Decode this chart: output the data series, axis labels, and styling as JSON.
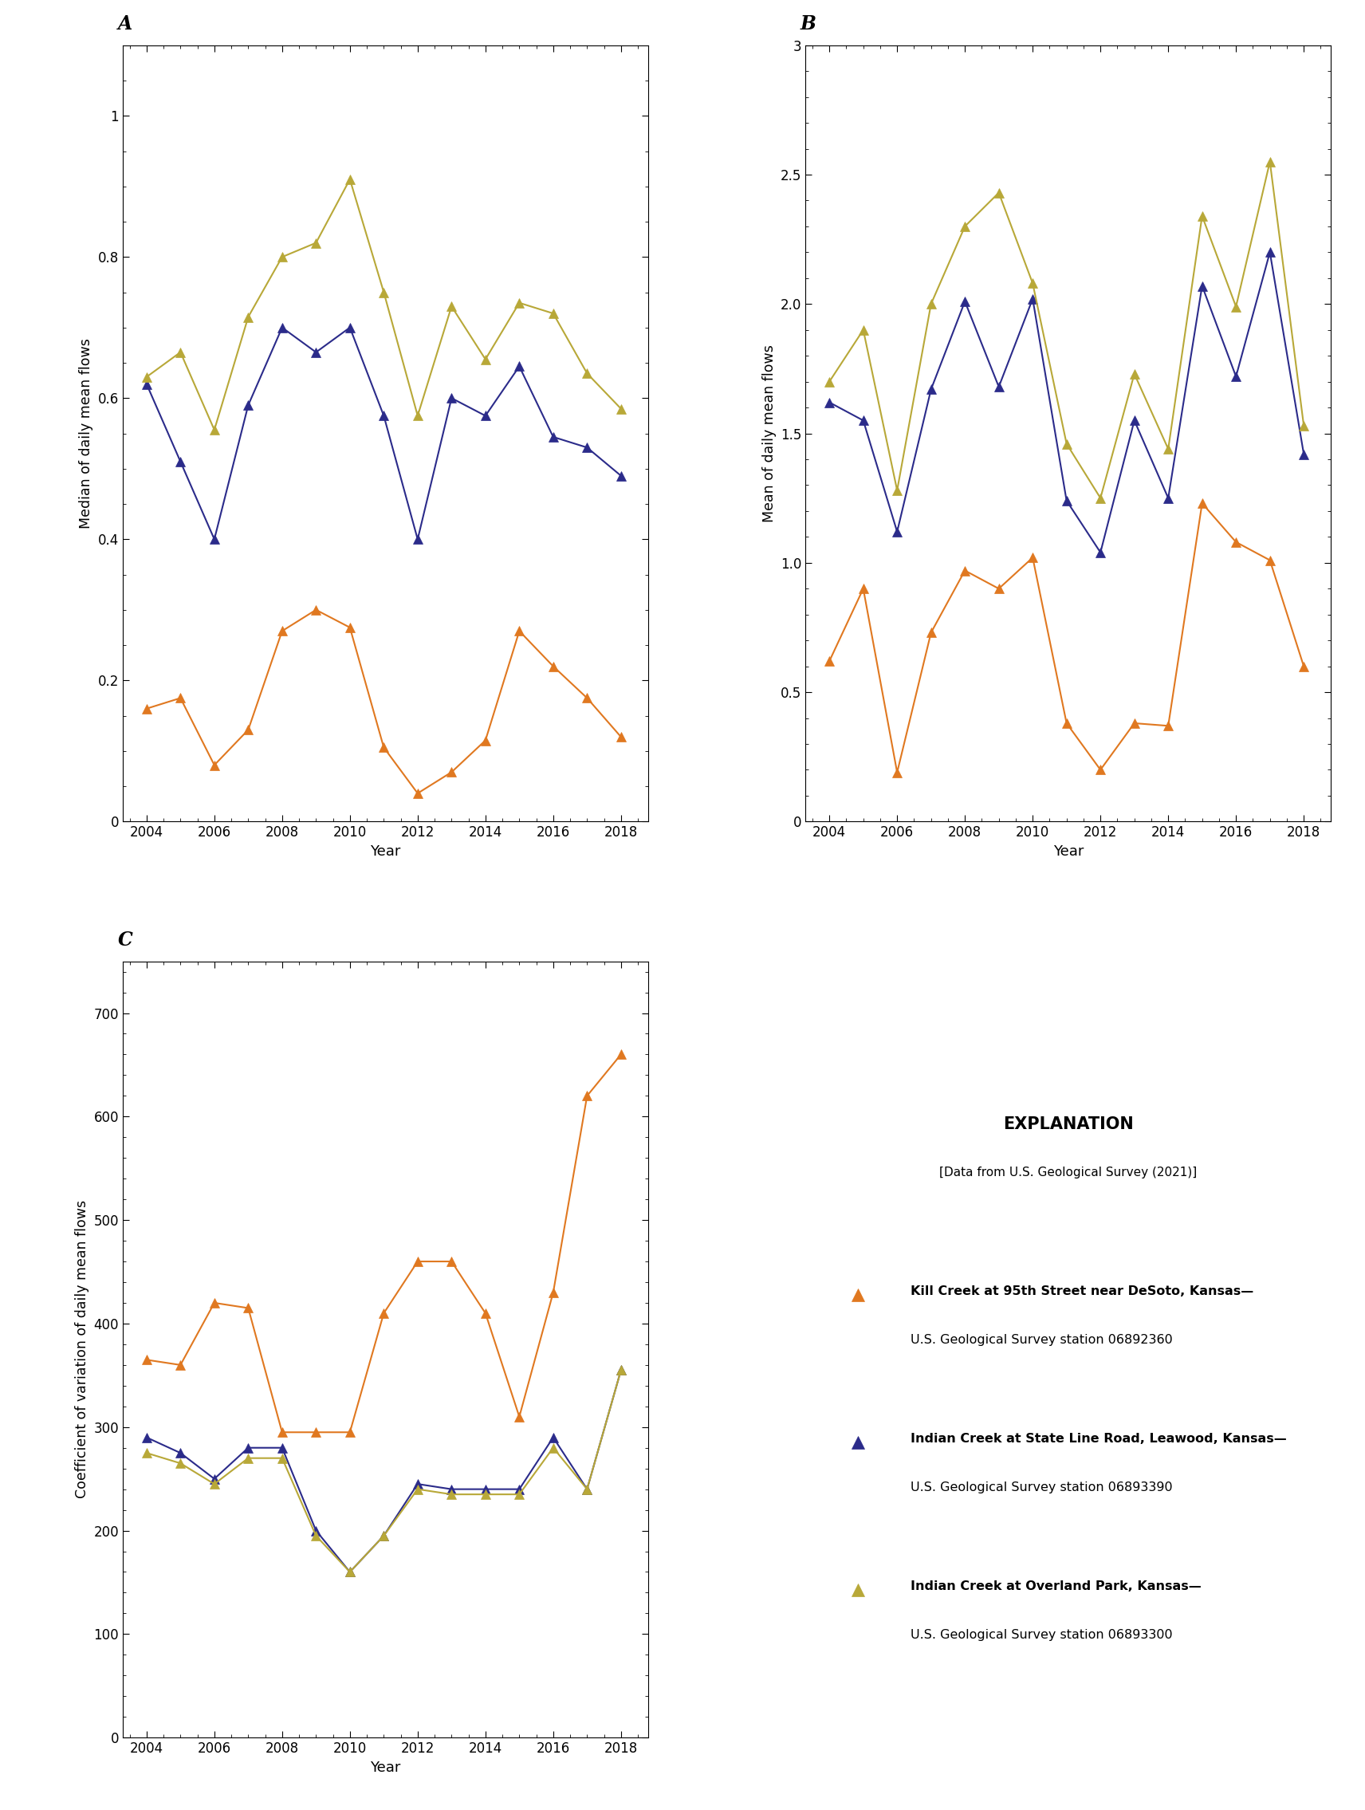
{
  "panel_A": {
    "title": "A",
    "ylabel": "Median of daily mean flows",
    "ylim": [
      0,
      1.1
    ],
    "yticks": [
      0,
      0.2,
      0.4,
      0.6,
      0.8,
      1.0
    ],
    "ytick_labels": [
      "0",
      "0.2",
      "0.4",
      "0.6",
      "0.8",
      "1"
    ],
    "xlabel": "Year",
    "kill_creek": {
      "years": [
        2004,
        2005,
        2006,
        2007,
        2008,
        2009,
        2010,
        2011,
        2012,
        2013,
        2014,
        2015,
        2016,
        2017,
        2018
      ],
      "values": [
        0.16,
        0.175,
        0.08,
        0.13,
        0.27,
        0.3,
        0.275,
        0.105,
        0.04,
        0.07,
        0.115,
        0.27,
        0.22,
        0.175,
        0.12
      ]
    },
    "indian_state": {
      "years": [
        2004,
        2005,
        2006,
        2007,
        2008,
        2009,
        2010,
        2011,
        2012,
        2013,
        2014,
        2015,
        2016,
        2017,
        2018
      ],
      "values": [
        0.62,
        0.51,
        0.4,
        0.59,
        0.7,
        0.665,
        0.7,
        0.575,
        0.4,
        0.6,
        0.575,
        0.645,
        0.545,
        0.53,
        0.49
      ]
    },
    "indian_op": {
      "years": [
        2004,
        2005,
        2006,
        2007,
        2008,
        2009,
        2010,
        2011,
        2012,
        2013,
        2014,
        2015,
        2016,
        2017,
        2018
      ],
      "values": [
        0.63,
        0.665,
        0.555,
        0.715,
        0.8,
        0.82,
        0.91,
        0.75,
        0.575,
        0.73,
        0.655,
        0.735,
        0.72,
        0.635,
        0.585
      ]
    }
  },
  "panel_B": {
    "title": "B",
    "ylabel": "Mean of daily mean flows",
    "ylim": [
      0,
      3.0
    ],
    "yticks": [
      0,
      0.5,
      1.0,
      1.5,
      2.0,
      2.5,
      3.0
    ],
    "ytick_labels": [
      "0",
      "0.5",
      "1.0",
      "1.5",
      "2.0",
      "2.5",
      "3"
    ],
    "xlabel": "Year",
    "kill_creek": {
      "years": [
        2004,
        2005,
        2006,
        2007,
        2008,
        2009,
        2010,
        2011,
        2012,
        2013,
        2014,
        2015,
        2016,
        2017,
        2018
      ],
      "values": [
        0.62,
        0.9,
        0.19,
        0.73,
        0.97,
        0.9,
        1.02,
        0.38,
        0.2,
        0.38,
        0.37,
        1.23,
        1.08,
        1.01,
        0.6
      ]
    },
    "indian_state": {
      "years": [
        2004,
        2005,
        2006,
        2007,
        2008,
        2009,
        2010,
        2011,
        2012,
        2013,
        2014,
        2015,
        2016,
        2017,
        2018
      ],
      "values": [
        1.62,
        1.55,
        1.12,
        1.67,
        2.01,
        1.68,
        2.02,
        1.24,
        1.04,
        1.55,
        1.25,
        2.07,
        1.72,
        2.2,
        1.42
      ]
    },
    "indian_op": {
      "years": [
        2004,
        2005,
        2006,
        2007,
        2008,
        2009,
        2010,
        2011,
        2012,
        2013,
        2014,
        2015,
        2016,
        2017,
        2018
      ],
      "values": [
        1.7,
        1.9,
        1.28,
        2.0,
        2.3,
        2.43,
        2.08,
        1.46,
        1.25,
        1.73,
        1.44,
        2.34,
        1.99,
        2.55,
        1.53
      ]
    }
  },
  "panel_C": {
    "title": "C",
    "ylabel": "Coefficient of variation of daily mean flows",
    "ylim": [
      0,
      750
    ],
    "yticks": [
      0,
      100,
      200,
      300,
      400,
      500,
      600,
      700
    ],
    "ytick_labels": [
      "0",
      "100",
      "200",
      "300",
      "400",
      "500",
      "600",
      "700"
    ],
    "xlabel": "Year",
    "kill_creek": {
      "years": [
        2004,
        2005,
        2006,
        2007,
        2008,
        2009,
        2010,
        2011,
        2012,
        2013,
        2014,
        2015,
        2016,
        2017,
        2018
      ],
      "values": [
        365,
        360,
        420,
        415,
        295,
        295,
        295,
        410,
        460,
        460,
        410,
        310,
        430,
        620,
        660
      ]
    },
    "indian_state": {
      "years": [
        2004,
        2005,
        2006,
        2007,
        2008,
        2009,
        2010,
        2011,
        2012,
        2013,
        2014,
        2015,
        2016,
        2017,
        2018
      ],
      "values": [
        290,
        275,
        250,
        280,
        280,
        200,
        160,
        195,
        245,
        240,
        240,
        240,
        290,
        240,
        355
      ]
    },
    "indian_op": {
      "years": [
        2004,
        2005,
        2006,
        2007,
        2008,
        2009,
        2010,
        2011,
        2012,
        2013,
        2014,
        2015,
        2016,
        2017,
        2018
      ],
      "values": [
        275,
        265,
        245,
        270,
        270,
        195,
        160,
        195,
        240,
        235,
        235,
        235,
        280,
        240,
        355
      ]
    }
  },
  "colors": {
    "kill_creek": "#E07820",
    "indian_state": "#2B2B8A",
    "indian_op": "#B8A838"
  },
  "legend": {
    "title": "EXPLANATION",
    "subtitle": "[Data from U.S. Geological Survey (2021)]",
    "kill_creek_label1": "Kill Creek at 95th Street near DeSoto, Kansas—",
    "kill_creek_label2": "U.S. Geological Survey station 06892360",
    "indian_state_label1": "Indian Creek at State Line Road, Leawood, Kansas—",
    "indian_state_label2": "U.S. Geological Survey station 06893390",
    "indian_op_label1": "Indian Creek at Overland Park, Kansas—",
    "indian_op_label2": "U.S. Geological Survey station 06893300"
  },
  "xticks": [
    2004,
    2006,
    2008,
    2010,
    2012,
    2014,
    2016,
    2018
  ]
}
